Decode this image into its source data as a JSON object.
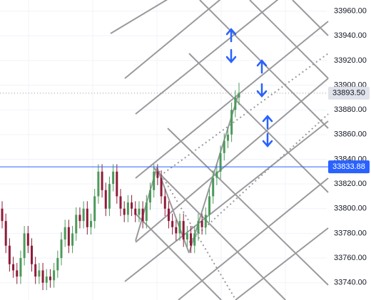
{
  "chart_data": {
    "type": "candlestick",
    "ylim": [
      33726,
      33969
    ],
    "yticks": [
      {
        "value": 33740,
        "label": "33740.00"
      },
      {
        "value": 33760,
        "label": "33760.00"
      },
      {
        "value": 33780,
        "label": "33780.00"
      },
      {
        "value": 33800,
        "label": "33800.00"
      },
      {
        "value": 33820,
        "label": "33820.00"
      },
      {
        "value": 33840,
        "label": "33840.00"
      },
      {
        "value": 33860,
        "label": "33860.00"
      },
      {
        "value": 33880,
        "label": "33880.00"
      },
      {
        "value": 33900,
        "label": "33900.00"
      },
      {
        "value": 33920,
        "label": "33920.00"
      },
      {
        "value": 33940,
        "label": "33940.00"
      },
      {
        "value": 33960,
        "label": "33960.00"
      }
    ],
    "grid": true,
    "up_color": "#4c9a5a",
    "down_color": "#8e1b3a",
    "price_lines": [
      {
        "value": 33893.5,
        "label": "33893.50",
        "color": "#9598a1",
        "style": "dotted"
      },
      {
        "value": 33833.88,
        "label": "33833.88",
        "color": "#2962ff",
        "style": "solid"
      }
    ],
    "open": [
      33800,
      33790,
      33770,
      33755,
      33750,
      33745,
      33760,
      33780,
      33770,
      33755,
      33745,
      33750,
      33740,
      33745,
      33742,
      33750,
      33760,
      33775,
      33785,
      33770,
      33780,
      33795,
      33790,
      33800,
      33785,
      33790,
      33810,
      33830,
      33815,
      33800,
      33820,
      33830,
      33810,
      33800,
      33795,
      33805,
      33800,
      33795,
      33800,
      33790,
      33805,
      33815,
      33830,
      33825,
      33810,
      33800,
      33790,
      33785,
      33780,
      33790,
      33775,
      33780,
      33770,
      33780,
      33790,
      33785,
      33795,
      33810,
      33825,
      33830,
      33845,
      33855,
      33860,
      33880,
      33890
    ],
    "high": [
      33806,
      33796,
      33776,
      33761,
      33756,
      33766,
      33786,
      33786,
      33776,
      33761,
      33756,
      33756,
      33751,
      33751,
      33756,
      33766,
      33781,
      33791,
      33791,
      33786,
      33801,
      33801,
      33806,
      33806,
      33796,
      33816,
      33836,
      33836,
      33821,
      33826,
      33836,
      33836,
      33816,
      33806,
      33811,
      33811,
      33806,
      33806,
      33806,
      33811,
      33821,
      33836,
      33836,
      33831,
      33816,
      33806,
      33796,
      33791,
      33796,
      33796,
      33786,
      33786,
      33786,
      33796,
      33796,
      33801,
      33816,
      33831,
      33836,
      33851,
      33861,
      33866,
      33886,
      33896,
      33902
    ],
    "low": [
      33784,
      33764,
      33749,
      33744,
      33739,
      33739,
      33754,
      33764,
      33749,
      33739,
      33739,
      33734,
      33734,
      33736,
      33736,
      33744,
      33754,
      33769,
      33764,
      33764,
      33774,
      33784,
      33784,
      33779,
      33779,
      33784,
      33804,
      33809,
      33794,
      33794,
      33814,
      33804,
      33794,
      33789,
      33789,
      33794,
      33789,
      33789,
      33784,
      33784,
      33799,
      33809,
      33819,
      33804,
      33794,
      33784,
      33779,
      33774,
      33774,
      33769,
      33769,
      33764,
      33764,
      33774,
      33779,
      33779,
      33789,
      33804,
      33819,
      33824,
      33839,
      33849,
      33854,
      33874,
      33884
    ],
    "close": [
      33790,
      33770,
      33755,
      33750,
      33745,
      33760,
      33780,
      33770,
      33755,
      33745,
      33750,
      33740,
      33745,
      33742,
      33750,
      33760,
      33775,
      33785,
      33770,
      33780,
      33795,
      33790,
      33800,
      33785,
      33790,
      33810,
      33830,
      33815,
      33800,
      33820,
      33830,
      33810,
      33800,
      33795,
      33805,
      33800,
      33795,
      33800,
      33790,
      33805,
      33815,
      33830,
      33825,
      33810,
      33800,
      33790,
      33785,
      33780,
      33790,
      33775,
      33780,
      33770,
      33780,
      33790,
      33785,
      33795,
      33810,
      33825,
      33830,
      33845,
      33855,
      33860,
      33880,
      33890,
      33893.5
    ]
  }
}
